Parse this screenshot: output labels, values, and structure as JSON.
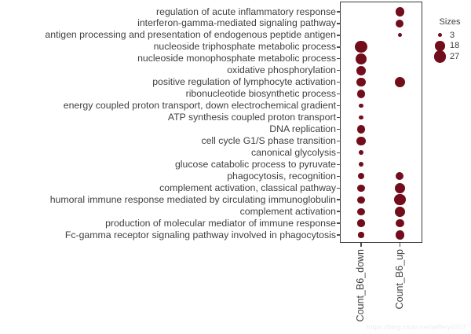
{
  "chart_data": {
    "type": "scatter",
    "subtype": "bubble-dotplot",
    "title": "",
    "xlabel": "",
    "ylabel": "",
    "grid": false,
    "columns": [
      "Count_B6_down",
      "Count_B6_up"
    ],
    "categories": [
      "regulation of acute inflammatory response",
      "interferon-gamma-mediated signaling pathway",
      "antigen processing and presentation of endogenous peptide antigen",
      "nucleoside triphosphate metabolic process",
      "nucleoside monophosphate metabolic process",
      "oxidative phosphorylation",
      "positive regulation of lymphocyte activation",
      "ribonucleotide biosynthetic process",
      "energy coupled proton transport, down electrochemical gradient",
      "ATP synthesis coupled proton transport",
      "DNA replication",
      "cell cycle G1/S phase transition",
      "canonical glycolysis",
      "glucose catabolic process to pyruvate",
      "phagocytosis, recognition",
      "complement activation, classical pathway",
      "humoral immune response mediated by circulating immunoglobulin",
      "complement activation",
      "production of molecular mediator of immune response",
      "Fc-gamma receptor signaling pathway involved in phagocytosis"
    ],
    "series": [
      {
        "name": "Count_B6_down",
        "values": [
          null,
          null,
          null,
          27,
          23,
          17,
          16,
          14,
          4,
          4,
          14,
          15,
          4,
          4,
          8,
          10,
          10,
          10,
          10,
          6
        ]
      },
      {
        "name": "Count_B6_up",
        "values": [
          17,
          12,
          3,
          null,
          null,
          null,
          22,
          null,
          null,
          null,
          null,
          null,
          null,
          null,
          12,
          20,
          25,
          20,
          14,
          17
        ]
      }
    ],
    "legend": {
      "title": "Sizes",
      "values": [
        3,
        18,
        27
      ],
      "position": "right"
    }
  },
  "watermark": "https://blog.csdn.net/jeffery0207",
  "colors": {
    "dot": "#720d1c",
    "axis_text": "#3f3f3f",
    "border": "#3c3c3c",
    "tick": "#4d4d4d",
    "watermark": "#ebebeb",
    "background": "#ffffff"
  }
}
